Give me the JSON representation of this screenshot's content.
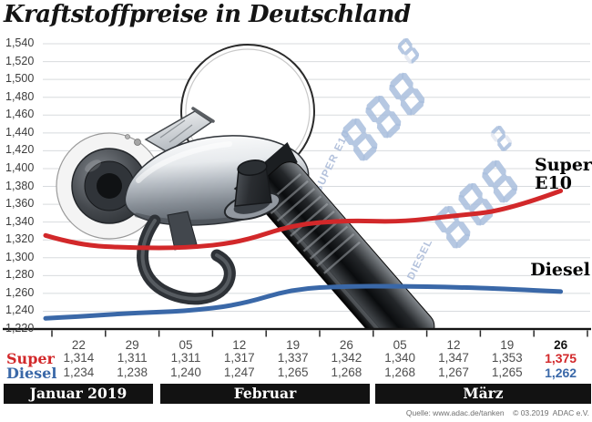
{
  "header": {
    "title": "Kraftstoffpreise in Deutschland"
  },
  "chart_data": {
    "type": "line",
    "title": "Kraftstoffpreise in Deutschland",
    "categories": [
      "22",
      "29",
      "05",
      "12",
      "19",
      "26",
      "05",
      "12",
      "19",
      "26"
    ],
    "month_groups": [
      {
        "label": "Januar 2019",
        "span": [
          0,
          1
        ]
      },
      {
        "label": "Februar",
        "span": [
          2,
          5
        ]
      },
      {
        "label": "März",
        "span": [
          6,
          9
        ]
      }
    ],
    "y_ticks": [
      "1,540",
      "1,520",
      "1,500",
      "1,480",
      "1,460",
      "1,440",
      "1,420",
      "1,400",
      "1,380",
      "1,360",
      "1,340",
      "1,320",
      "1,300",
      "1,280",
      "1,260",
      "1,240",
      "1,220"
    ],
    "ylim": [
      1220,
      1540
    ],
    "y_step": 20,
    "grid": true,
    "legend_position": "right-inline",
    "series": [
      {
        "name": "Super E10",
        "color": "#d2282a",
        "values": [
          1314,
          1311,
          1311,
          1317,
          1337,
          1342,
          1340,
          1347,
          1353,
          1375
        ],
        "lead_in": 1325
      },
      {
        "name": "Diesel",
        "color": "#3a68a8",
        "values": [
          1234,
          1238,
          1240,
          1247,
          1265,
          1268,
          1268,
          1267,
          1265,
          1262
        ],
        "lead_in": 1232
      }
    ]
  },
  "legend": {
    "super_line1": "Super",
    "super_line2": "E10",
    "diesel": "Diesel"
  },
  "table": {
    "rows": [
      {
        "label": "Super"
      },
      {
        "label": "Diesel"
      }
    ]
  },
  "watermark": {
    "rows": [
      {
        "label": "SUPER E10",
        "digits": "888",
        "sup": "9"
      },
      {
        "label": "DIESEL",
        "digits": "888",
        "sup": "2"
      }
    ],
    "on_color": "#a9bedd",
    "off_color": "#e3e8f1",
    "label_color": "#b4c2dc"
  },
  "source": "Quelle: www.adac.de/tanken    © 03.2019  ADAC e.V."
}
